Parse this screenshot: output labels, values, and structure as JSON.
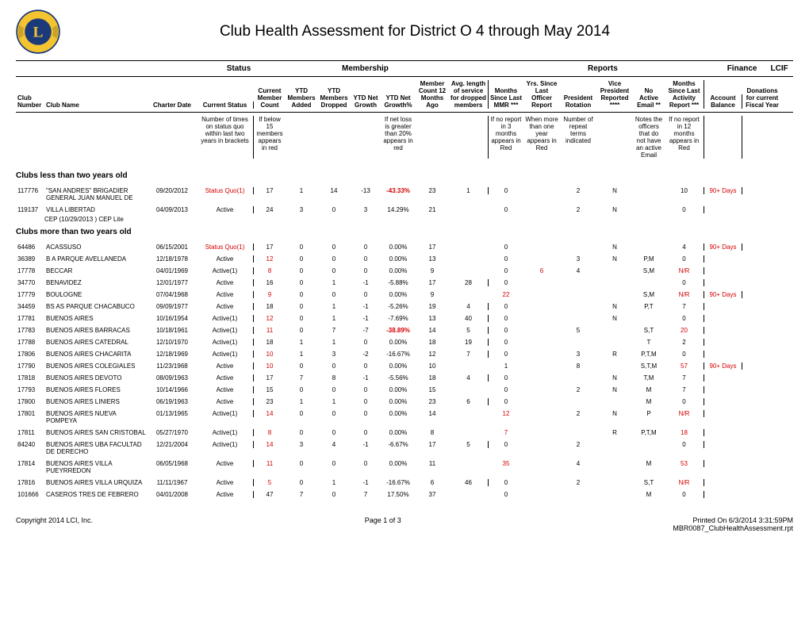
{
  "title": "Club Health Assessment for District O 4 through May 2014",
  "groupHeaders": {
    "status": "Status",
    "membership": "Membership",
    "reports": "Reports",
    "finance": "Finance",
    "lcif": "LCIF"
  },
  "colHeaders": {
    "clubNumber": "Club\nNumber",
    "clubName": "Club\nName",
    "charterDate": "Charter\nDate",
    "currentStatus": "Current\nStatus",
    "memberCount": "Current\nMember\nCount",
    "ytdAdded": "YTD\nMembers\nAdded",
    "ytdDropped": "YTD\nMembers\nDropped",
    "ytdNetGrowth": "YTD\nNet\nGrowth",
    "ytdNetGrowthPct": "YTD\nNet\nGrowth%",
    "memberCount12": "Member\nCount 12\nMonths\nAgo",
    "avgLen": "Avg. length\nof service\nfor dropped\nmembers",
    "monthsMMR": "Months\nSince\nLast\nMMR ***",
    "yrsOfficer": "Yrs. Since\nLast\nOfficer\nReport",
    "presRot": "President\nRotation",
    "vpReported": "Vice\nPresident\nReported\n****",
    "noActiveEmail": "No\nActive\nEmail **",
    "monthsActivity": "Months\nSince Last\nActivity\nReport ***",
    "accountBal": "Account\nBalance",
    "donations": "Donations\nfor current\nFiscal\nYear"
  },
  "explain": {
    "status": "Number of times\non status quo\nwithin last\ntwo years\nin brackets",
    "memberCount": "If below\n15\nmembers\nappears\nin red",
    "growthPct": "If net loss\nis greater\nthan 20%\nappears\nin red",
    "mmr": "If no report\nin 3\nmonths\nappears in\nRed",
    "yrsOff": "When\nmore than\none year\nappears in\nRed",
    "presRot": "Number\nof\nrepeat\nterms\nindicated",
    "noEmail": "Notes the\nofficers that\ndo not have\nan active\nEmail",
    "activity": "If no report\nin 12\nmonths\nappears in\nRed"
  },
  "sections": [
    {
      "title": "Clubs less than two years old",
      "rows": [
        {
          "num": "117776",
          "name": "\"SAN ANDRES\" BRIGADIER GENERAL JUAN MANUEL DE",
          "ch": "09/20/2012",
          "status": "Status Quo(1)",
          "statusRed": true,
          "mc": "17",
          "add": "1",
          "drop": "14",
          "ng": "-13",
          "ngp": "-43.33%",
          "ngpRed": true,
          "mc12": "23",
          "avglen": "1",
          "mmr": "0",
          "yrs": "",
          "presrot": "2",
          "vp": "N",
          "noem": "",
          "mact": "10",
          "acct": "90+ Days",
          "acctRed": true,
          "lcif": ""
        },
        {
          "num": "119137",
          "name": "VILLA LIBERTAD",
          "ch": "04/09/2013",
          "status": "Active",
          "mc": "24",
          "add": "3",
          "drop": "0",
          "ng": "3",
          "ngp": "14.29%",
          "mc12": "21",
          "avglen": "",
          "mmr": "0",
          "yrs": "",
          "presrot": "2",
          "vp": "N",
          "noem": "",
          "mact": "0",
          "acct": "",
          "lcif": ""
        }
      ],
      "subnote": "CEP (10/29/2013 ) CEP Lite"
    },
    {
      "title": "Clubs more than two years old",
      "rows": [
        {
          "num": "64486",
          "name": "ACASSUSO",
          "ch": "06/15/2001",
          "status": "Status Quo(1)",
          "statusRed": true,
          "mc": "17",
          "add": "0",
          "drop": "0",
          "ng": "0",
          "ngp": "0.00%",
          "mc12": "17",
          "avglen": "",
          "mmr": "0",
          "yrs": "",
          "presrot": "",
          "vp": "N",
          "noem": "",
          "mact": "4",
          "acct": "90+ Days",
          "acctRed": true,
          "lcif": ""
        },
        {
          "num": "36389",
          "name": "B A PARQUE AVELLANEDA",
          "ch": "12/18/1978",
          "status": "Active",
          "mc": "12",
          "mcRed": true,
          "add": "0",
          "drop": "0",
          "ng": "0",
          "ngp": "0.00%",
          "mc12": "13",
          "avglen": "",
          "mmr": "0",
          "yrs": "",
          "presrot": "3",
          "vp": "N",
          "noem": "P,M",
          "mact": "0",
          "acct": "",
          "lcif": ""
        },
        {
          "num": "17778",
          "name": "BECCAR",
          "ch": "04/01/1969",
          "status": "Active(1)",
          "mc": "8",
          "mcRed": true,
          "add": "0",
          "drop": "0",
          "ng": "0",
          "ngp": "0.00%",
          "mc12": "9",
          "avglen": "",
          "mmr": "0",
          "yrs": "6",
          "yrsRed": true,
          "presrot": "4",
          "vp": "",
          "noem": "S,M",
          "mact": "N/R",
          "mactRed": true,
          "acct": "",
          "lcif": ""
        },
        {
          "num": "34770",
          "name": "BENAVIDEZ",
          "ch": "12/01/1977",
          "status": "Active",
          "mc": "16",
          "add": "0",
          "drop": "1",
          "ng": "-1",
          "ngp": "-5.88%",
          "mc12": "17",
          "avglen": "28",
          "mmr": "0",
          "yrs": "",
          "presrot": "",
          "vp": "",
          "noem": "",
          "mact": "0",
          "acct": "",
          "lcif": ""
        },
        {
          "num": "17779",
          "name": "BOULOGNE",
          "ch": "07/04/1968",
          "status": "Active",
          "mc": "9",
          "mcRed": true,
          "add": "0",
          "drop": "0",
          "ng": "0",
          "ngp": "0.00%",
          "mc12": "9",
          "avglen": "",
          "mmr": "22",
          "mmrRed": true,
          "yrs": "",
          "presrot": "",
          "vp": "",
          "noem": "S,M",
          "mact": "N/R",
          "mactRed": true,
          "acct": "90+ Days",
          "acctRed": true,
          "lcif": ""
        },
        {
          "num": "34459",
          "name": "BS AS PARQUE CHACABUCO",
          "ch": "09/09/1977",
          "status": "Active",
          "mc": "18",
          "add": "0",
          "drop": "1",
          "ng": "-1",
          "ngp": "-5.26%",
          "mc12": "19",
          "avglen": "4",
          "mmr": "0",
          "yrs": "",
          "presrot": "",
          "vp": "N",
          "noem": "P,T",
          "mact": "7",
          "acct": "",
          "lcif": ""
        },
        {
          "num": "17781",
          "name": "BUENOS AIRES",
          "ch": "10/16/1954",
          "status": "Active(1)",
          "mc": "12",
          "mcRed": true,
          "add": "0",
          "drop": "1",
          "ng": "-1",
          "ngp": "-7.69%",
          "mc12": "13",
          "avglen": "40",
          "mmr": "0",
          "yrs": "",
          "presrot": "",
          "vp": "N",
          "noem": "",
          "mact": "0",
          "acct": "",
          "lcif": ""
        },
        {
          "num": "17783",
          "name": "BUENOS AIRES BARRACAS",
          "ch": "10/18/1961",
          "status": "Active(1)",
          "mc": "11",
          "mcRed": true,
          "add": "0",
          "drop": "7",
          "ng": "-7",
          "ngp": "-38.89%",
          "ngpRed": true,
          "mc12": "14",
          "avglen": "5",
          "mmr": "0",
          "yrs": "",
          "presrot": "5",
          "vp": "",
          "noem": "S,T",
          "mact": "20",
          "mactRed": true,
          "acct": "",
          "lcif": ""
        },
        {
          "num": "17788",
          "name": "BUENOS AIRES CATEDRAL",
          "ch": "12/10/1970",
          "status": "Active(1)",
          "mc": "18",
          "add": "1",
          "drop": "1",
          "ng": "0",
          "ngp": "0.00%",
          "mc12": "18",
          "avglen": "19",
          "mmr": "0",
          "yrs": "",
          "presrot": "",
          "vp": "",
          "noem": "T",
          "mact": "2",
          "acct": "",
          "lcif": ""
        },
        {
          "num": "17806",
          "name": "BUENOS AIRES CHACARITA",
          "ch": "12/18/1969",
          "status": "Active(1)",
          "mc": "10",
          "mcRed": true,
          "add": "1",
          "drop": "3",
          "ng": "-2",
          "ngp": "-16.67%",
          "mc12": "12",
          "avglen": "7",
          "mmr": "0",
          "yrs": "",
          "presrot": "3",
          "vp": "R",
          "noem": "P,T,M",
          "mact": "0",
          "acct": "",
          "lcif": ""
        },
        {
          "num": "17790",
          "name": "BUENOS AIRES COLEGIALES",
          "ch": "11/23/1968",
          "status": "Active",
          "mc": "10",
          "mcRed": true,
          "add": "0",
          "drop": "0",
          "ng": "0",
          "ngp": "0.00%",
          "mc12": "10",
          "avglen": "",
          "mmr": "1",
          "yrs": "",
          "presrot": "8",
          "vp": "",
          "noem": "S,T,M",
          "mact": "57",
          "mactRed": true,
          "acct": "90+ Days",
          "acctRed": true,
          "lcif": ""
        },
        {
          "num": "17818",
          "name": "BUENOS AIRES DEVOTO",
          "ch": "08/09/1963",
          "status": "Active",
          "mc": "17",
          "add": "7",
          "drop": "8",
          "ng": "-1",
          "ngp": "-5.56%",
          "mc12": "18",
          "avglen": "4",
          "mmr": "0",
          "yrs": "",
          "presrot": "",
          "vp": "N",
          "noem": "T,M",
          "mact": "7",
          "acct": "",
          "lcif": ""
        },
        {
          "num": "17793",
          "name": "BUENOS AIRES FLORES",
          "ch": "10/14/1966",
          "status": "Active",
          "mc": "15",
          "add": "0",
          "drop": "0",
          "ng": "0",
          "ngp": "0.00%",
          "mc12": "15",
          "avglen": "",
          "mmr": "0",
          "yrs": "",
          "presrot": "2",
          "vp": "N",
          "noem": "M",
          "mact": "7",
          "acct": "",
          "lcif": ""
        },
        {
          "num": "17800",
          "name": "BUENOS AIRES LINIERS",
          "ch": "06/19/1963",
          "status": "Active",
          "mc": "23",
          "add": "1",
          "drop": "1",
          "ng": "0",
          "ngp": "0.00%",
          "mc12": "23",
          "avglen": "6",
          "mmr": "0",
          "yrs": "",
          "presrot": "",
          "vp": "",
          "noem": "M",
          "mact": "0",
          "acct": "",
          "lcif": ""
        },
        {
          "num": "17801",
          "name": "BUENOS AIRES NUEVA POMPEYA",
          "ch": "01/13/1965",
          "status": "Active(1)",
          "mc": "14",
          "mcRed": true,
          "add": "0",
          "drop": "0",
          "ng": "0",
          "ngp": "0.00%",
          "mc12": "14",
          "avglen": "",
          "mmr": "12",
          "mmrRed": true,
          "yrs": "",
          "presrot": "2",
          "vp": "N",
          "noem": "P",
          "mact": "N/R",
          "mactRed": true,
          "acct": "",
          "lcif": ""
        },
        {
          "num": "17811",
          "name": "BUENOS AIRES SAN CRISTOBAL",
          "ch": "05/27/1970",
          "status": "Active(1)",
          "mc": "8",
          "mcRed": true,
          "add": "0",
          "drop": "0",
          "ng": "0",
          "ngp": "0.00%",
          "mc12": "8",
          "avglen": "",
          "mmr": "7",
          "mmrRed": true,
          "yrs": "",
          "presrot": "",
          "vp": "R",
          "noem": "P,T,M",
          "mact": "18",
          "mactRed": true,
          "acct": "",
          "lcif": ""
        },
        {
          "num": "84240",
          "name": "BUENOS AIRES UBA FACULTAD DE DERECHO",
          "ch": "12/21/2004",
          "status": "Active(1)",
          "mc": "14",
          "mcRed": true,
          "add": "3",
          "drop": "4",
          "ng": "-1",
          "ngp": "-6.67%",
          "mc12": "17",
          "avglen": "5",
          "mmr": "0",
          "yrs": "",
          "presrot": "2",
          "vp": "",
          "noem": "",
          "mact": "0",
          "acct": "",
          "lcif": ""
        },
        {
          "num": "17814",
          "name": "BUENOS AIRES VILLA PUEYRREDON",
          "ch": "06/05/1968",
          "status": "Active",
          "mc": "11",
          "mcRed": true,
          "add": "0",
          "drop": "0",
          "ng": "0",
          "ngp": "0.00%",
          "mc12": "11",
          "avglen": "",
          "mmr": "35",
          "mmrRed": true,
          "yrs": "",
          "presrot": "4",
          "vp": "",
          "noem": "M",
          "mact": "53",
          "mactRed": true,
          "acct": "",
          "lcif": ""
        },
        {
          "num": "17816",
          "name": "BUENOS AIRES VILLA URQUIZA",
          "ch": "11/11/1967",
          "status": "Active",
          "mc": "5",
          "mcRed": true,
          "add": "0",
          "drop": "1",
          "ng": "-1",
          "ngp": "-16.67%",
          "mc12": "6",
          "avglen": "46",
          "mmr": "0",
          "yrs": "",
          "presrot": "2",
          "vp": "",
          "noem": "S,T",
          "mact": "N/R",
          "mactRed": true,
          "acct": "",
          "lcif": ""
        },
        {
          "num": "101666",
          "name": "CASEROS TRES DE FEBRERO",
          "ch": "04/01/2008",
          "status": "Active",
          "mc": "47",
          "add": "7",
          "drop": "0",
          "ng": "7",
          "ngp": "17.50%",
          "mc12": "37",
          "avglen": "",
          "mmr": "0",
          "yrs": "",
          "presrot": "",
          "vp": "",
          "noem": "M",
          "mact": "0",
          "acct": "",
          "lcif": ""
        }
      ]
    }
  ],
  "footer": {
    "copyright": "Copyright 2014 LCI, Inc.",
    "page": "Page 1 of 3",
    "printed": "Printed On 6/3/2014  3:31:59PM",
    "report": "MBR0087_ClubHealthAssessment.rpt"
  }
}
